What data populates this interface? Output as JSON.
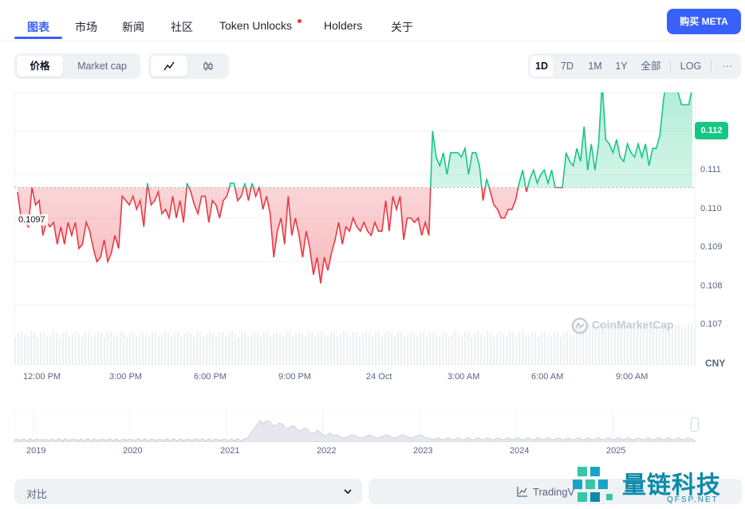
{
  "tabs": [
    {
      "label": "图表"
    },
    {
      "label": "市场"
    },
    {
      "label": "新闻"
    },
    {
      "label": "社区"
    },
    {
      "label": "Token Unlocks"
    },
    {
      "label": "Holders"
    },
    {
      "label": "关于"
    }
  ],
  "buy_button": "购买 META",
  "metric_toggle": {
    "price": "价格",
    "market_cap": "Market cap"
  },
  "chart_style_icons": [
    "line-chart-icon",
    "candlestick-icon"
  ],
  "ranges": [
    "1D",
    "7D",
    "1M",
    "1Y",
    "全部"
  ],
  "log_label": "LOG",
  "more_label": "···",
  "chart_data": {
    "type": "line",
    "currency": "CNY",
    "reference_price": 0.1097,
    "current_price": 0.112,
    "y_ticks": [
      "0.111",
      "0.110",
      "0.109",
      "0.108",
      "0.107"
    ],
    "x_ticks": [
      "12:00 PM",
      "3:00 PM",
      "6:00 PM",
      "9:00 PM",
      "24 Oct",
      "3:00 AM",
      "6:00 AM",
      "9:00 AM"
    ],
    "reference_label": "0.1097",
    "current_label": "0.112",
    "ylim": [
      0.1064,
      0.1117
    ],
    "colors": {
      "up": "#16c784",
      "down": "#ea3943"
    },
    "values": [
      0.1096,
      0.109,
      0.1089,
      0.1088,
      0.1097,
      0.1093,
      0.1094,
      0.1086,
      0.1089,
      0.1088,
      0.1089,
      0.1084,
      0.1088,
      0.1084,
      0.1089,
      0.1086,
      0.1089,
      0.1083,
      0.1084,
      0.1089,
      0.1087,
      0.1083,
      0.108,
      0.1081,
      0.1085,
      0.108,
      0.1082,
      0.1086,
      0.1083,
      0.1095,
      0.1094,
      0.1093,
      0.1095,
      0.1092,
      0.1094,
      0.1088,
      0.1098,
      0.1093,
      0.1094,
      0.1096,
      0.1091,
      0.1092,
      0.109,
      0.1095,
      0.109,
      0.1094,
      0.1089,
      0.1098,
      0.1096,
      0.1093,
      0.1091,
      0.1095,
      0.1095,
      0.1089,
      0.1094,
      0.1093,
      0.109,
      0.1094,
      0.1095,
      0.1098,
      0.1098,
      0.1094,
      0.1095,
      0.1098,
      0.1094,
      0.1098,
      0.1095,
      0.1097,
      0.1092,
      0.1095,
      0.1091,
      0.1081,
      0.1087,
      0.109,
      0.1084,
      0.1095,
      0.1086,
      0.109,
      0.1086,
      0.1081,
      0.1087,
      0.1083,
      0.1077,
      0.1081,
      0.1075,
      0.1081,
      0.1078,
      0.1082,
      0.1085,
      0.1089,
      0.1084,
      0.1088,
      0.1087,
      0.109,
      0.1088,
      0.1087,
      0.1089,
      0.1087,
      0.1086,
      0.1089,
      0.1087,
      0.1087,
      0.1094,
      0.1087,
      0.1095,
      0.1092,
      0.1095,
      0.1085,
      0.109,
      0.109,
      0.1089,
      0.109,
      0.1086,
      0.1089,
      0.1086,
      0.111,
      0.1104,
      0.1102,
      0.1105,
      0.11,
      0.1105,
      0.1105,
      0.1105,
      0.1104,
      0.1106,
      0.11,
      0.1105,
      0.1105,
      0.1102,
      0.1094,
      0.1099,
      0.1096,
      0.1093,
      0.1092,
      0.109,
      0.109,
      0.1092,
      0.1092,
      0.1094,
      0.1098,
      0.1101,
      0.1096,
      0.1099,
      0.1101,
      0.1098,
      0.11,
      0.1101,
      0.1098,
      0.1101,
      0.1097,
      0.1097,
      0.1097,
      0.1105,
      0.1103,
      0.1102,
      0.1106,
      0.1103,
      0.1111,
      0.1101,
      0.1107,
      0.1101,
      0.1107,
      0.1121,
      0.1108,
      0.1107,
      0.1105,
      0.1108,
      0.1104,
      0.1103,
      0.1107,
      0.1105,
      0.1104,
      0.1107,
      0.1104,
      0.1107,
      0.1102,
      0.1106,
      0.1106,
      0.1109,
      0.1117,
      0.1123,
      0.112,
      0.1121,
      0.1119,
      0.1116,
      0.1116,
      0.1116,
      0.112
    ]
  },
  "watermark": "CoinMarketCap",
  "navigator": {
    "years": [
      "2019",
      "2020",
      "2021",
      "2022",
      "2023",
      "2024",
      "2025"
    ]
  },
  "compare": {
    "label": "对比"
  },
  "tradingview": {
    "label": "TradingV"
  },
  "brand": {
    "name": "量链科技",
    "site": "QFSP.NET"
  }
}
